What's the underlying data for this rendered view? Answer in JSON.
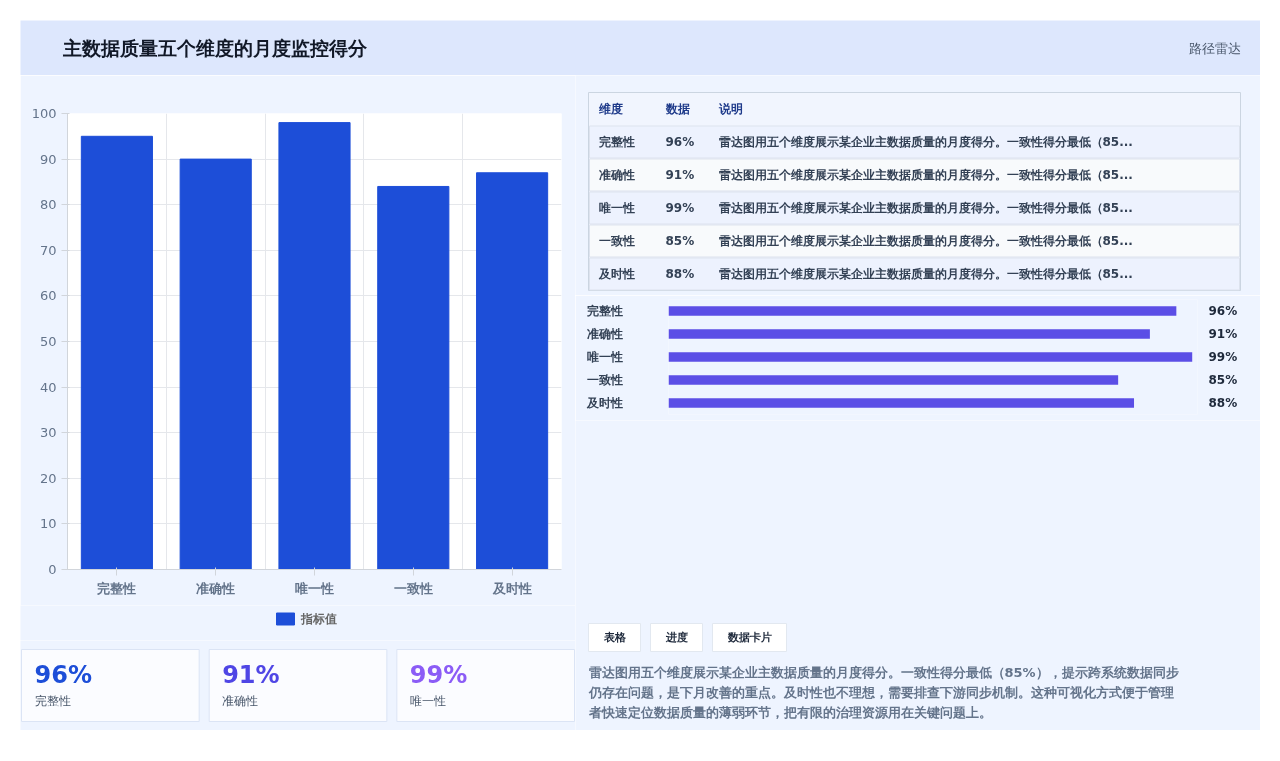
{
  "chart_data": [
    {
      "type": "other",
      "title": "主数据质量五个维度的月度监控得分",
      "annotations": [
        "路径雷达"
      ]
    },
    {
      "type": "bar",
      "categories": [
        "完整性",
        "准确性",
        "唯一性",
        "一致性",
        "及时性"
      ],
      "series": [
        {
          "name": "指标值",
          "color": "#1d4ed8",
          "values": [
            95,
            90,
            98,
            84,
            87
          ]
        }
      ],
      "ylim": [
        0,
        100
      ],
      "yticks": [
        0,
        10,
        20,
        30,
        40,
        50,
        60,
        70,
        80,
        90,
        100
      ],
      "grid": true,
      "legend": "bottom"
    },
    {
      "type": "other",
      "annotations": [
        "维度",
        "数据",
        "说明",
        "完整性",
        "96%",
        "雷达图用五个维度展示某企业主数据质量的月度得分。一致性得分最低（85...",
        "准确性",
        "91%",
        "雷达图用五个维度展示某企业主数据质量的月度得分。一致性得分最低（85...",
        "唯一性",
        "99%",
        "雷达图用五个维度展示某企业主数据质量的月度得分。一致性得分最低（85...",
        "一致性",
        "85%",
        "雷达图用五个维度展示某企业主数据质量的月度得分。一致性得分最低（85...",
        "及时性",
        "88%",
        "雷达图用五个维度展示某企业主数据质量的月度得分。一致性得分最低（85..."
      ]
    },
    {
      "type": "bar",
      "orientation": "horizontal",
      "categories": [
        "完整性",
        "准确性",
        "唯一性",
        "一致性",
        "及时性"
      ],
      "values": [
        96,
        91,
        99,
        85,
        88
      ],
      "value_labels": [
        "96%",
        "91%",
        "99%",
        "85%",
        "88%"
      ],
      "color": "#5b4ee6",
      "xlim": [
        0,
        100
      ],
      "tick_labels": "y"
    },
    {
      "type": "other",
      "annotations": [
        "96%",
        "完整性",
        "91%",
        "准确性",
        "99%",
        "唯一性"
      ],
      "colors": [
        "#1d4ed8",
        "#4f46e5",
        "#8b5cf6"
      ]
    },
    {
      "type": "other",
      "annotations": [
        "表格",
        "进度",
        "数据卡片",
        "雷达图用五个维度展示某企业主数据质量的月度得分。一致性得分最低（85%），提示跨系统数据同步仍存在问题，是下月改善的重点。及时性也不理想，需要排查下游同步机制。这种可视化方式便于管理者快速定位数据质量的薄弱环节，把有限的治理资源用在关键问题上。"
      ]
    }
  ]
}
